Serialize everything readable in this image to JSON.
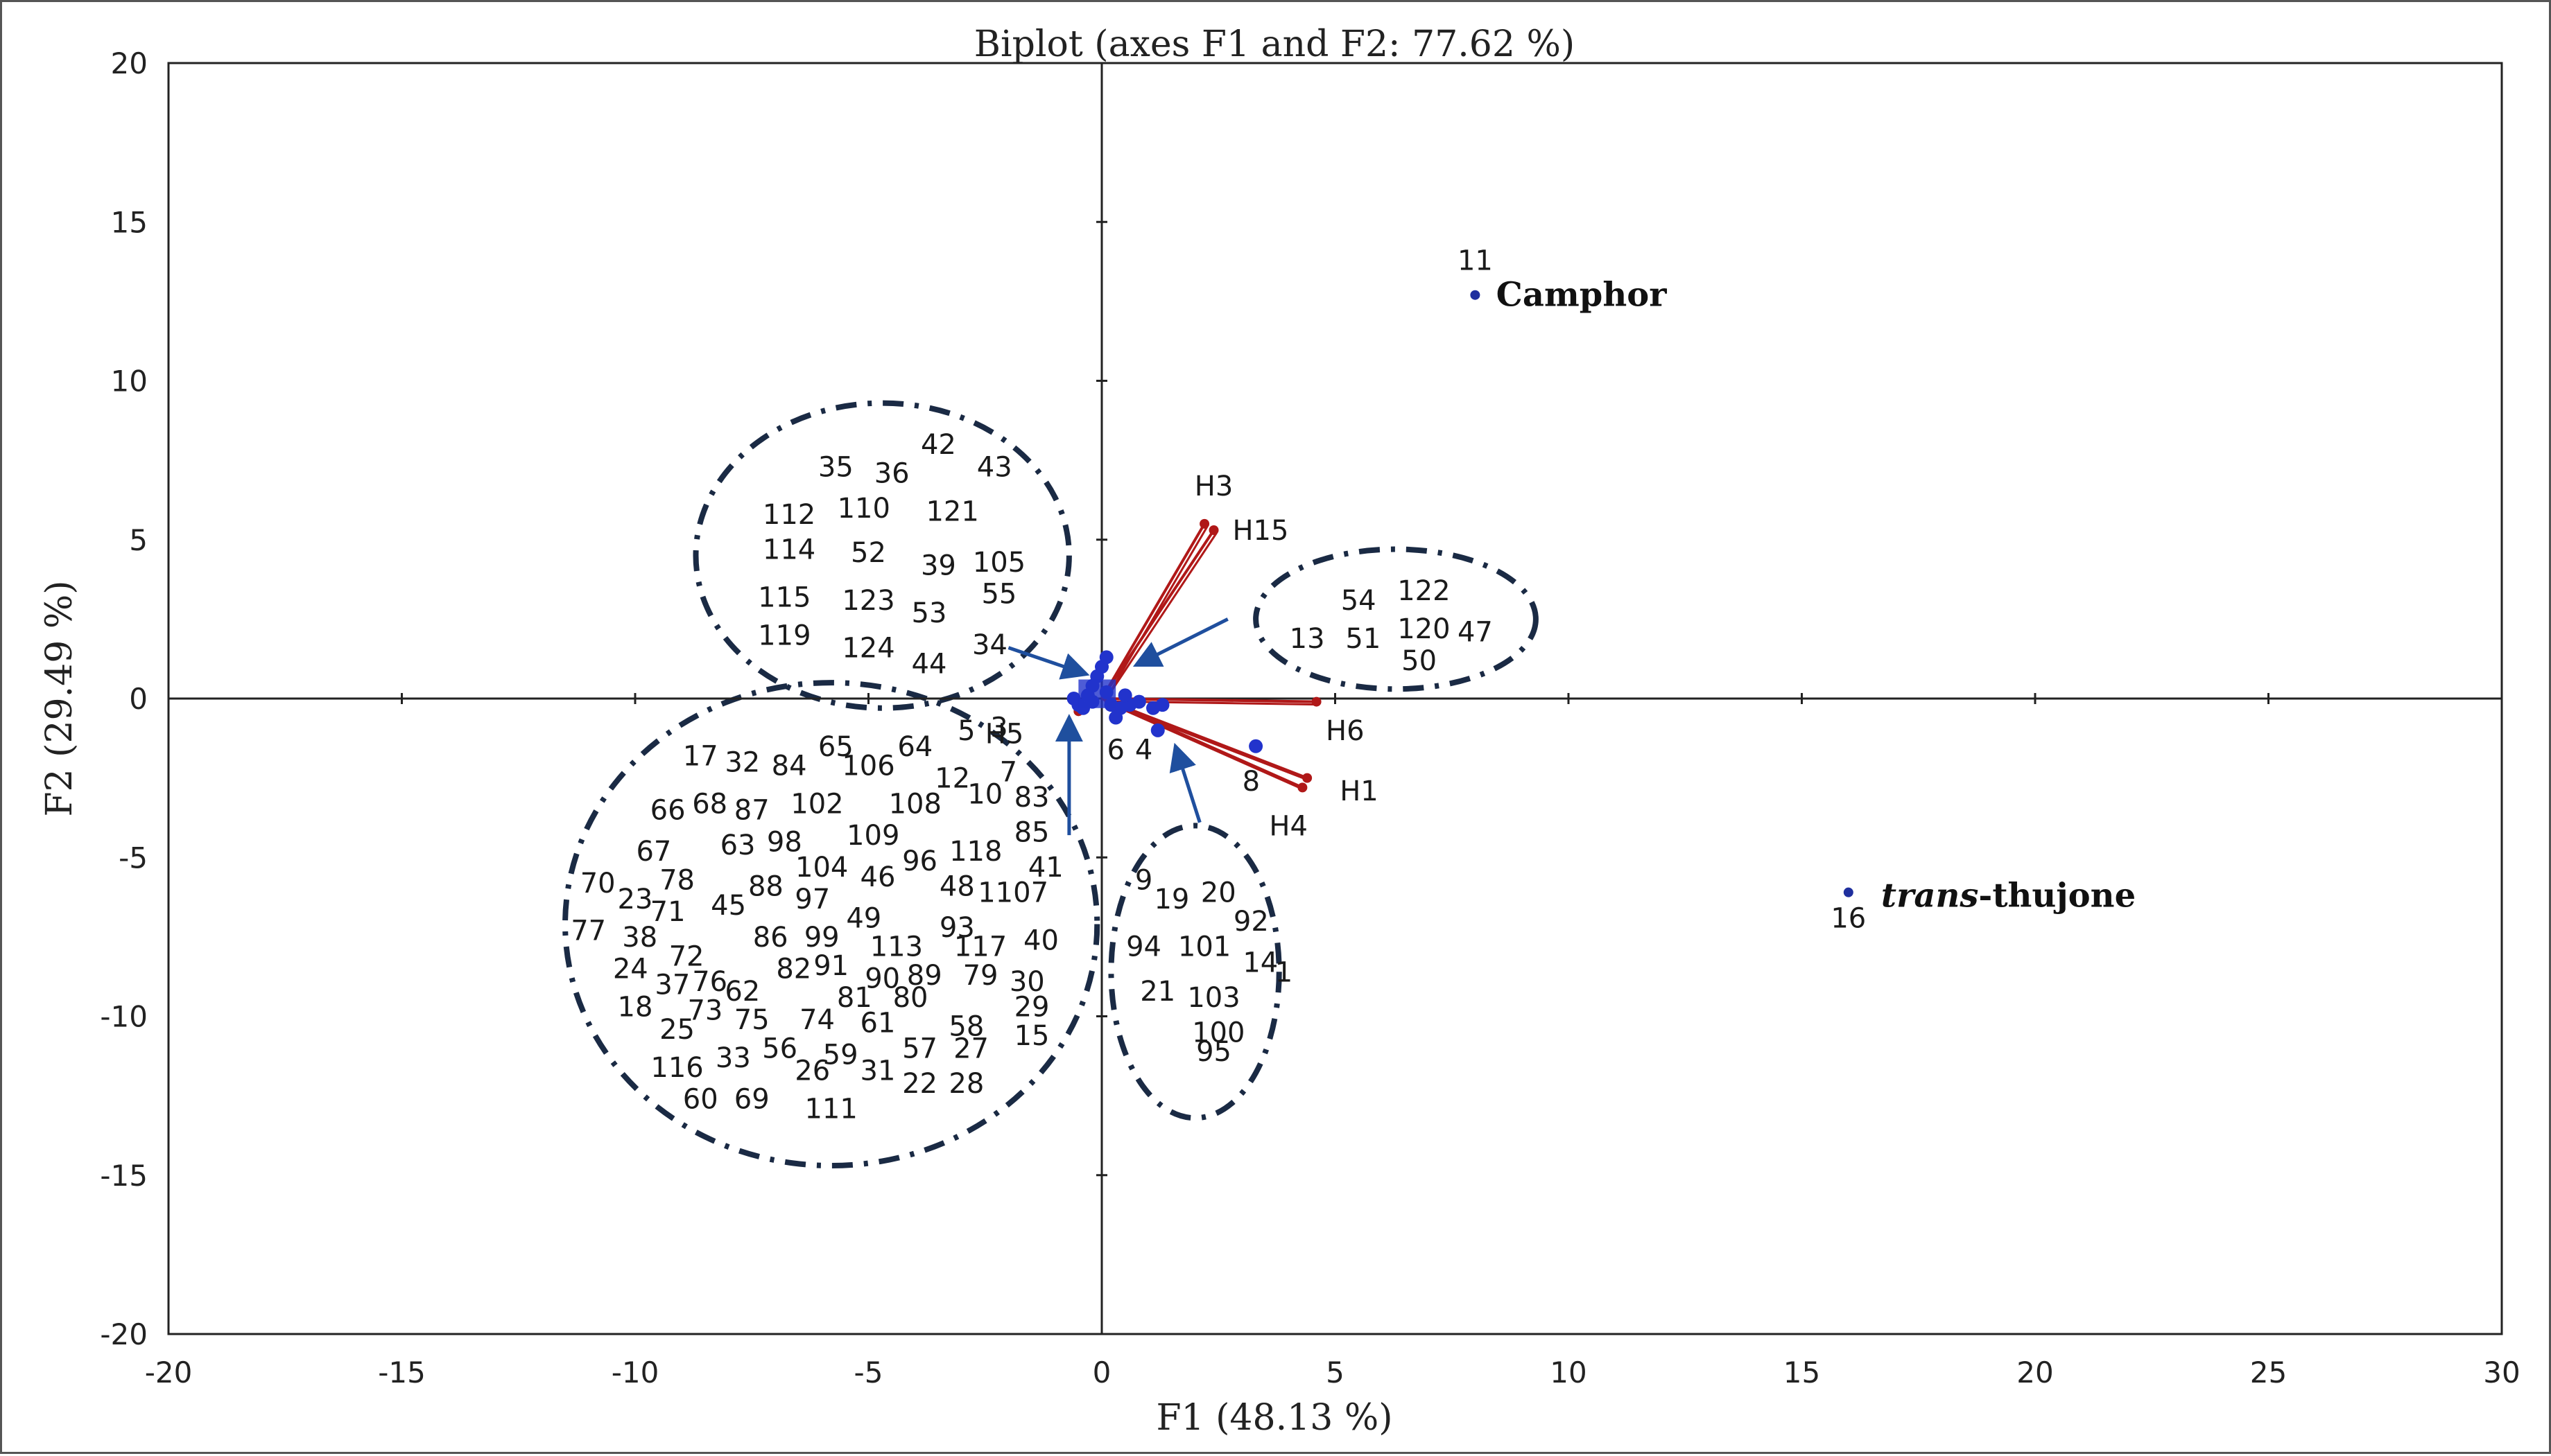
{
  "chart_data": {
    "type": "scatter",
    "title": "Biplot (axes F1 and F2: 77.62 %)",
    "xlabel": "F1 (48.13 %)",
    "ylabel": "F2 (29.49 %)",
    "xlim": [
      -20,
      30
    ],
    "ylim": [
      -20,
      20
    ],
    "x_ticks": [
      "-20",
      "-15",
      "-10",
      "-5",
      "0",
      "5",
      "10",
      "15",
      "20",
      "25",
      "30"
    ],
    "y_ticks": [
      "20",
      "15",
      "10",
      "5",
      "0",
      "-5",
      "-10",
      "-15",
      "-20"
    ],
    "grid": false,
    "colors": {
      "observations": "#1f2f9e",
      "variables": "#b01818",
      "ellipses": "#1a2a44",
      "arrows": "#1f4f9e"
    },
    "named_points": [
      {
        "id": "11",
        "name": "Camphor",
        "x": 8.0,
        "y": 12.7
      },
      {
        "id": "16",
        "name_italic": "trans",
        "name_rest": "-thujone",
        "x": 16.0,
        "y": -6.1
      }
    ],
    "variables": [
      {
        "label": "H3",
        "x": 2.2,
        "y": 5.5
      },
      {
        "label": "H15",
        "x": 2.4,
        "y": 5.3
      },
      {
        "label": "H6",
        "x": 4.6,
        "y": -0.1
      },
      {
        "label": "H1",
        "x": 4.4,
        "y": -2.5
      },
      {
        "label": "H4",
        "x": 4.3,
        "y": -2.8
      },
      {
        "label": "H5",
        "x": -0.5,
        "y": -0.4
      }
    ],
    "observation_labels": [
      {
        "text": "35",
        "x": -5.7,
        "y": 7.3
      },
      {
        "text": "36",
        "x": -4.5,
        "y": 7.1
      },
      {
        "text": "42",
        "x": -3.5,
        "y": 8.0
      },
      {
        "text": "43",
        "x": -2.3,
        "y": 7.3
      },
      {
        "text": "112",
        "x": -6.7,
        "y": 5.8
      },
      {
        "text": "110",
        "x": -5.1,
        "y": 6.0
      },
      {
        "text": "121",
        "x": -3.2,
        "y": 5.9
      },
      {
        "text": "114",
        "x": -6.7,
        "y": 4.7
      },
      {
        "text": "52",
        "x": -5.0,
        "y": 4.6
      },
      {
        "text": "39",
        "x": -3.5,
        "y": 4.2
      },
      {
        "text": "105",
        "x": -2.2,
        "y": 4.3
      },
      {
        "text": "115",
        "x": -6.8,
        "y": 3.2
      },
      {
        "text": "123",
        "x": -5.0,
        "y": 3.1
      },
      {
        "text": "53",
        "x": -3.7,
        "y": 2.7
      },
      {
        "text": "55",
        "x": -2.2,
        "y": 3.3
      },
      {
        "text": "119",
        "x": -6.8,
        "y": 2.0
      },
      {
        "text": "124",
        "x": -5.0,
        "y": 1.6
      },
      {
        "text": "44",
        "x": -3.7,
        "y": 1.1
      },
      {
        "text": "34",
        "x": -2.4,
        "y": 1.7
      },
      {
        "text": "54",
        "x": 5.5,
        "y": 3.1
      },
      {
        "text": "122",
        "x": 6.9,
        "y": 3.4
      },
      {
        "text": "13",
        "x": 4.4,
        "y": 1.9
      },
      {
        "text": "51",
        "x": 5.6,
        "y": 1.9
      },
      {
        "text": "120",
        "x": 6.9,
        "y": 2.2
      },
      {
        "text": "47",
        "x": 8.0,
        "y": 2.1
      },
      {
        "text": "50",
        "x": 6.8,
        "y": 1.2
      },
      {
        "text": "5",
        "x": -2.9,
        "y": -1.0
      },
      {
        "text": "3",
        "x": -2.2,
        "y": -0.9
      },
      {
        "text": "6",
        "x": 0.3,
        "y": -1.6
      },
      {
        "text": "4",
        "x": 0.9,
        "y": -1.6
      },
      {
        "text": "8",
        "x": 3.2,
        "y": -2.6
      },
      {
        "text": "17",
        "x": -8.6,
        "y": -1.8
      },
      {
        "text": "32",
        "x": -7.7,
        "y": -2.0
      },
      {
        "text": "84",
        "x": -6.7,
        "y": -2.1
      },
      {
        "text": "65",
        "x": -5.7,
        "y": -1.5
      },
      {
        "text": "106",
        "x": -5.0,
        "y": -2.1
      },
      {
        "text": "64",
        "x": -4.0,
        "y": -1.5
      },
      {
        "text": "12",
        "x": -3.2,
        "y": -2.5
      },
      {
        "text": "7",
        "x": -2.0,
        "y": -2.3
      },
      {
        "text": "66",
        "x": -9.3,
        "y": -3.5
      },
      {
        "text": "68",
        "x": -8.4,
        "y": -3.3
      },
      {
        "text": "87",
        "x": -7.5,
        "y": -3.5
      },
      {
        "text": "102",
        "x": -6.1,
        "y": -3.3
      },
      {
        "text": "108",
        "x": -4.0,
        "y": -3.3
      },
      {
        "text": "10",
        "x": -2.5,
        "y": -3.0
      },
      {
        "text": "83",
        "x": -1.5,
        "y": -3.1
      },
      {
        "text": "67",
        "x": -9.6,
        "y": -4.8
      },
      {
        "text": "63",
        "x": -7.8,
        "y": -4.6
      },
      {
        "text": "98",
        "x": -6.8,
        "y": -4.5
      },
      {
        "text": "109",
        "x": -4.9,
        "y": -4.3
      },
      {
        "text": "96",
        "x": -3.9,
        "y": -5.1
      },
      {
        "text": "118",
        "x": -2.7,
        "y": -4.8
      },
      {
        "text": "85",
        "x": -1.5,
        "y": -4.2
      },
      {
        "text": "41",
        "x": -1.2,
        "y": -5.3
      },
      {
        "text": "70",
        "x": -10.8,
        "y": -5.8
      },
      {
        "text": "78",
        "x": -9.1,
        "y": -5.7
      },
      {
        "text": "23",
        "x": -10.0,
        "y": -6.3
      },
      {
        "text": "71",
        "x": -9.3,
        "y": -6.7
      },
      {
        "text": "45",
        "x": -8.0,
        "y": -6.5
      },
      {
        "text": "88",
        "x": -7.2,
        "y": -5.9
      },
      {
        "text": "104",
        "x": -6.0,
        "y": -5.3
      },
      {
        "text": "46",
        "x": -4.8,
        "y": -5.6
      },
      {
        "text": "97",
        "x": -6.2,
        "y": -6.3
      },
      {
        "text": "48",
        "x": -3.1,
        "y": -5.9
      },
      {
        "text": "1107",
        "x": -1.9,
        "y": -6.1
      },
      {
        "text": "49",
        "x": -5.1,
        "y": -6.9
      },
      {
        "text": "93",
        "x": -3.1,
        "y": -7.2
      },
      {
        "text": "77",
        "x": -11.0,
        "y": -7.3
      },
      {
        "text": "38",
        "x": -9.9,
        "y": -7.5
      },
      {
        "text": "72",
        "x": -8.9,
        "y": -8.1
      },
      {
        "text": "86",
        "x": -7.1,
        "y": -7.5
      },
      {
        "text": "99",
        "x": -6.0,
        "y": -7.5
      },
      {
        "text": "113",
        "x": -4.4,
        "y": -7.8
      },
      {
        "text": "117",
        "x": -2.6,
        "y": -7.8
      },
      {
        "text": "40",
        "x": -1.3,
        "y": -7.6
      },
      {
        "text": "24",
        "x": -10.1,
        "y": -8.5
      },
      {
        "text": "37",
        "x": -9.2,
        "y": -9.0
      },
      {
        "text": "76",
        "x": -8.4,
        "y": -8.9
      },
      {
        "text": "62",
        "x": -7.7,
        "y": -9.2
      },
      {
        "text": "82",
        "x": -6.6,
        "y": -8.5
      },
      {
        "text": "91",
        "x": -5.8,
        "y": -8.4
      },
      {
        "text": "90",
        "x": -4.7,
        "y": -8.8
      },
      {
        "text": "89",
        "x": -3.8,
        "y": -8.7
      },
      {
        "text": "79",
        "x": -2.6,
        "y": -8.7
      },
      {
        "text": "30",
        "x": -1.6,
        "y": -8.9
      },
      {
        "text": "81",
        "x": -5.3,
        "y": -9.4
      },
      {
        "text": "80",
        "x": -4.1,
        "y": -9.4
      },
      {
        "text": "29",
        "x": -1.5,
        "y": -9.7
      },
      {
        "text": "18",
        "x": -10.0,
        "y": -9.7
      },
      {
        "text": "73",
        "x": -8.5,
        "y": -9.8
      },
      {
        "text": "75",
        "x": -7.5,
        "y": -10.1
      },
      {
        "text": "74",
        "x": -6.1,
        "y": -10.1
      },
      {
        "text": "61",
        "x": -4.8,
        "y": -10.2
      },
      {
        "text": "58",
        "x": -2.9,
        "y": -10.3
      },
      {
        "text": "15",
        "x": -1.5,
        "y": -10.6
      },
      {
        "text": "25",
        "x": -9.1,
        "y": -10.4
      },
      {
        "text": "56",
        "x": -6.9,
        "y": -11.0
      },
      {
        "text": "59",
        "x": -5.6,
        "y": -11.2
      },
      {
        "text": "57",
        "x": -3.9,
        "y": -11.0
      },
      {
        "text": "27",
        "x": -2.8,
        "y": -11.0
      },
      {
        "text": "33",
        "x": -7.9,
        "y": -11.3
      },
      {
        "text": "116",
        "x": -9.1,
        "y": -11.6
      },
      {
        "text": "26",
        "x": -6.2,
        "y": -11.7
      },
      {
        "text": "31",
        "x": -4.8,
        "y": -11.7
      },
      {
        "text": "22",
        "x": -3.9,
        "y": -12.1
      },
      {
        "text": "28",
        "x": -2.9,
        "y": -12.1
      },
      {
        "text": "60",
        "x": -8.6,
        "y": -12.6
      },
      {
        "text": "69",
        "x": -7.5,
        "y": -12.6
      },
      {
        "text": "111",
        "x": -5.8,
        "y": -12.9
      },
      {
        "text": "9",
        "x": 0.9,
        "y": -5.7
      },
      {
        "text": "19",
        "x": 1.5,
        "y": -6.3
      },
      {
        "text": "20",
        "x": 2.5,
        "y": -6.1
      },
      {
        "text": "92",
        "x": 3.2,
        "y": -7.0
      },
      {
        "text": "94",
        "x": 0.9,
        "y": -7.8
      },
      {
        "text": "101",
        "x": 2.2,
        "y": -7.8
      },
      {
        "text": "14",
        "x": 3.4,
        "y": -8.3
      },
      {
        "text": "1",
        "x": 3.9,
        "y": -8.6
      },
      {
        "text": "21",
        "x": 1.2,
        "y": -9.2
      },
      {
        "text": "103",
        "x": 2.4,
        "y": -9.4
      },
      {
        "text": "100",
        "x": 2.5,
        "y": -10.5
      },
      {
        "text": "95",
        "x": 2.4,
        "y": -11.1
      }
    ]
  }
}
